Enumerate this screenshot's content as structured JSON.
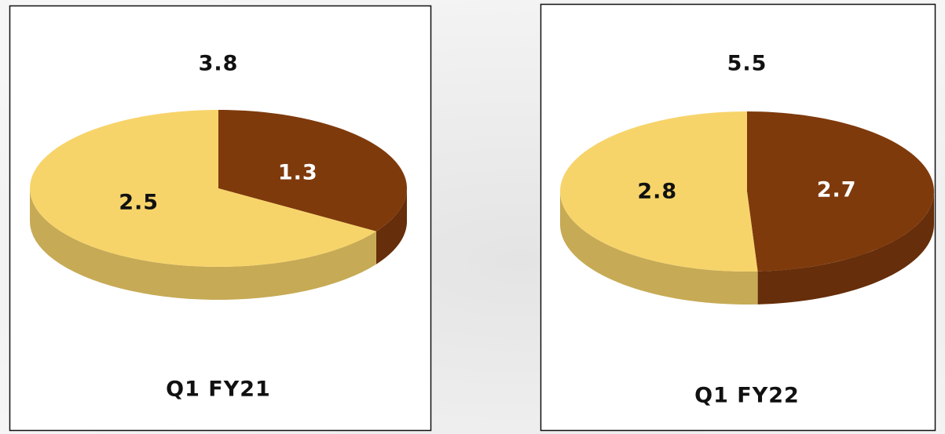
{
  "chart_data": [
    {
      "type": "pie",
      "total": 3.8,
      "caption": "Q1 FY21",
      "values": [
        1.3,
        2.5
      ],
      "colors": [
        "#7f3a0c",
        "#f7d46a"
      ]
    },
    {
      "type": "pie",
      "total": 5.5,
      "caption": "Q1 FY22",
      "values": [
        2.7,
        2.8
      ],
      "colors": [
        "#7f3a0c",
        "#f7d46a"
      ]
    }
  ]
}
